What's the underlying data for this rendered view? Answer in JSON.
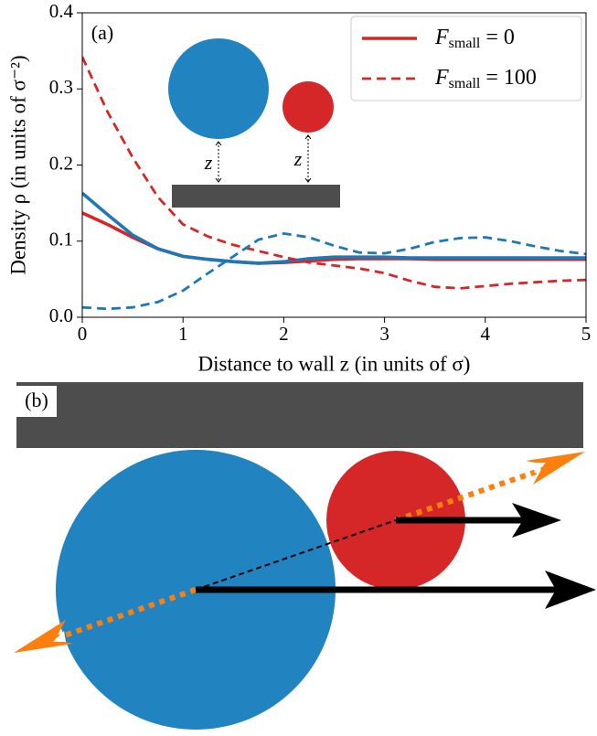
{
  "chart_data": {
    "type": "line",
    "panel_label": "(a)",
    "xlabel": "Distance to wall z (in units of σ)",
    "ylabel": "Density ρ (in units of σ⁻²)",
    "x": [
      0,
      0.25,
      0.5,
      0.75,
      1,
      1.25,
      1.5,
      1.75,
      2,
      2.25,
      2.5,
      2.75,
      3,
      3.25,
      3.5,
      3.75,
      4,
      4.25,
      4.5,
      4.75,
      5
    ],
    "series": [
      {
        "color": "#d62728",
        "style": "solid",
        "values": [
          0.137,
          0.122,
          0.105,
          0.09,
          0.08,
          0.076,
          0.073,
          0.071,
          0.072,
          0.074,
          0.076,
          0.077,
          0.077,
          0.077,
          0.076,
          0.076,
          0.076,
          0.076,
          0.076,
          0.076,
          0.076
        ]
      },
      {
        "color": "#1f77b4",
        "style": "solid",
        "values": [
          0.163,
          0.135,
          0.108,
          0.09,
          0.08,
          0.076,
          0.073,
          0.071,
          0.073,
          0.077,
          0.079,
          0.079,
          0.079,
          0.078,
          0.078,
          0.078,
          0.078,
          0.078,
          0.078,
          0.078,
          0.078
        ]
      },
      {
        "color": "#d62728",
        "style": "dashed",
        "values": [
          0.342,
          0.27,
          0.21,
          0.158,
          0.122,
          0.106,
          0.095,
          0.087,
          0.079,
          0.072,
          0.068,
          0.064,
          0.058,
          0.048,
          0.04,
          0.038,
          0.041,
          0.044,
          0.046,
          0.048,
          0.049
        ]
      },
      {
        "color": "#1f77b4",
        "style": "dashed",
        "values": [
          0.013,
          0.011,
          0.013,
          0.02,
          0.035,
          0.058,
          0.08,
          0.102,
          0.11,
          0.105,
          0.094,
          0.085,
          0.084,
          0.09,
          0.099,
          0.104,
          0.105,
          0.1,
          0.093,
          0.087,
          0.083
        ]
      }
    ],
    "legend": [
      {
        "symbol": "F",
        "subscript": "small",
        "text": "= 0",
        "color": "#d62728",
        "style": "solid"
      },
      {
        "symbol": "F",
        "subscript": "small",
        "text": "= 100",
        "color": "#d62728",
        "style": "dashed"
      }
    ],
    "legend_position": "upper right",
    "inset_labels": [
      "z",
      "z"
    ],
    "xlim": [
      0,
      5
    ],
    "xticks": [
      0,
      1,
      2,
      3,
      4,
      5
    ],
    "ylim": [
      0,
      0.4
    ],
    "yticks": [
      {
        "value": 0,
        "label": "0.0"
      },
      0.1,
      0.2,
      0.3,
      0.4
    ]
  },
  "diagram": {
    "label": "(b)"
  }
}
